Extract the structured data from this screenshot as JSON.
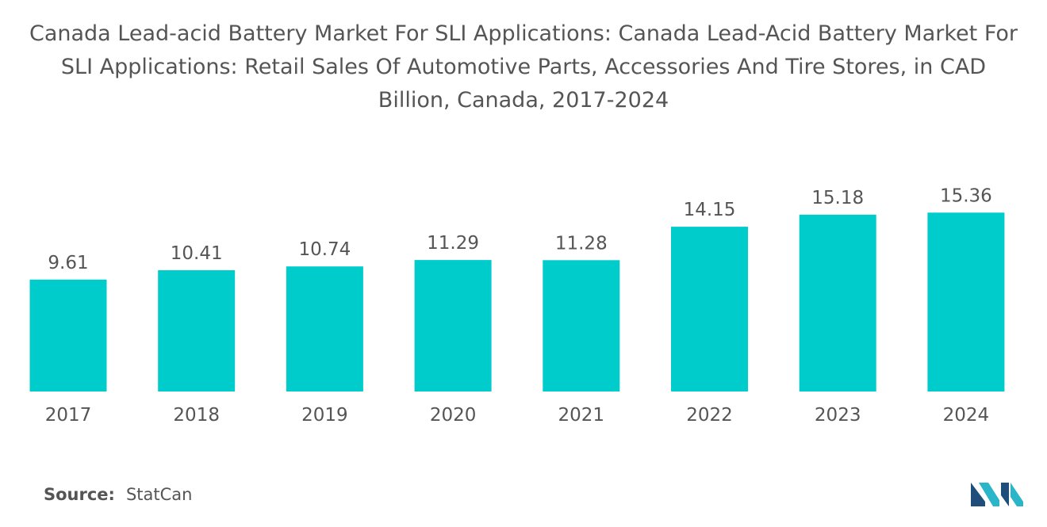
{
  "title_lines": [
    "Canada Lead-acid Battery Market For SLI Applications: Canada Lead-Acid Battery Market For",
    "SLI Applications: Retail Sales Of Automotive Parts, Accessories And Tire Stores, in CAD",
    "Billion, Canada, 2017-2024"
  ],
  "source": {
    "label": "Source:",
    "value": "StatCan"
  },
  "logo": {
    "icon": "mordor-intelligence-logo-icon"
  },
  "colors": {
    "bar": "#00CCCC",
    "text": "#555555",
    "logo_dark": "#1E4E79",
    "logo_light": "#2BB5C9"
  },
  "chart_data": {
    "type": "bar",
    "title": "Canada Lead-acid Battery Market For SLI Applications: Canada Lead-Acid Battery Market For SLI Applications: Retail Sales Of Automotive Parts, Accessories And Tire Stores, in CAD Billion, Canada, 2017-2024",
    "categories": [
      "2017",
      "2018",
      "2019",
      "2020",
      "2021",
      "2022",
      "2023",
      "2024"
    ],
    "values": [
      9.61,
      10.41,
      10.74,
      11.29,
      11.28,
      14.15,
      15.18,
      15.36
    ],
    "value_labels": [
      "9.61",
      "10.41",
      "10.74",
      "11.29",
      "11.28",
      "14.15",
      "15.18",
      "15.36"
    ],
    "xlabel": "",
    "ylabel": "",
    "ylim": [
      0,
      19.6
    ],
    "grid": false,
    "legend": "none"
  }
}
